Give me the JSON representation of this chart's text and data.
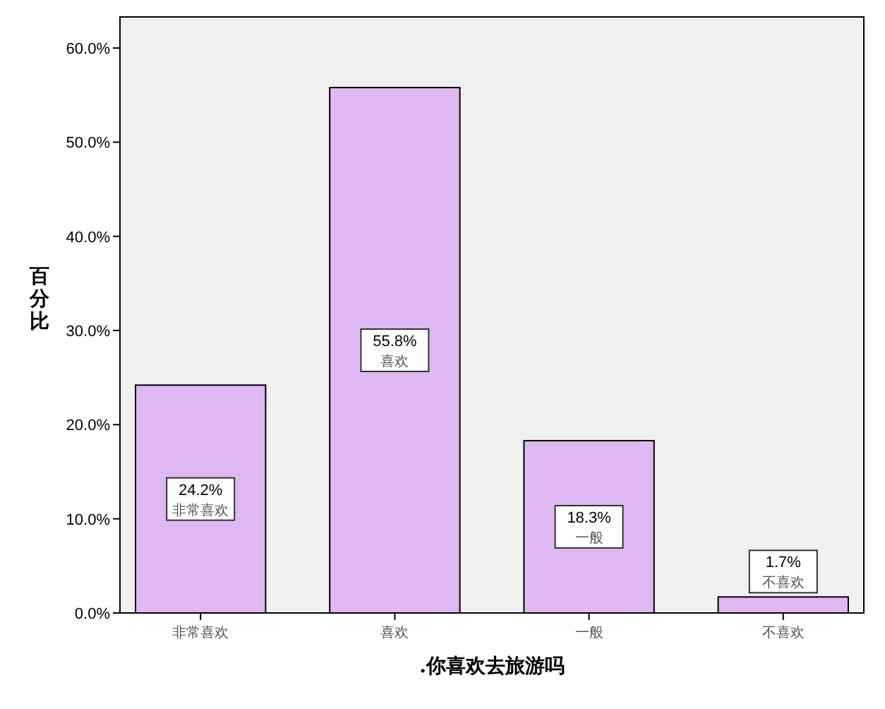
{
  "chart_data": {
    "type": "bar",
    "xlabel": ".你喜欢去旅游吗",
    "ylabel": "百分比",
    "categories": [
      "非常喜欢",
      "喜欢",
      "一般",
      "不喜欢"
    ],
    "values": [
      24.2,
      55.8,
      18.3,
      1.7
    ],
    "value_labels": [
      "24.2%",
      "55.8%",
      "18.3%",
      "1.7%"
    ],
    "color": "#dfb8f2",
    "ylim": [
      0,
      63.3
    ],
    "yticks": [
      {
        "value": 0,
        "label": "0.0%"
      },
      {
        "value": 10,
        "label": "10.0%"
      },
      {
        "value": 20,
        "label": "20.0%"
      },
      {
        "value": 30,
        "label": "30.0%"
      },
      {
        "value": 40,
        "label": "40.0%"
      },
      {
        "value": 50,
        "label": "50.0%"
      },
      {
        "value": 60,
        "label": "60.0%"
      }
    ],
    "grid": false
  }
}
